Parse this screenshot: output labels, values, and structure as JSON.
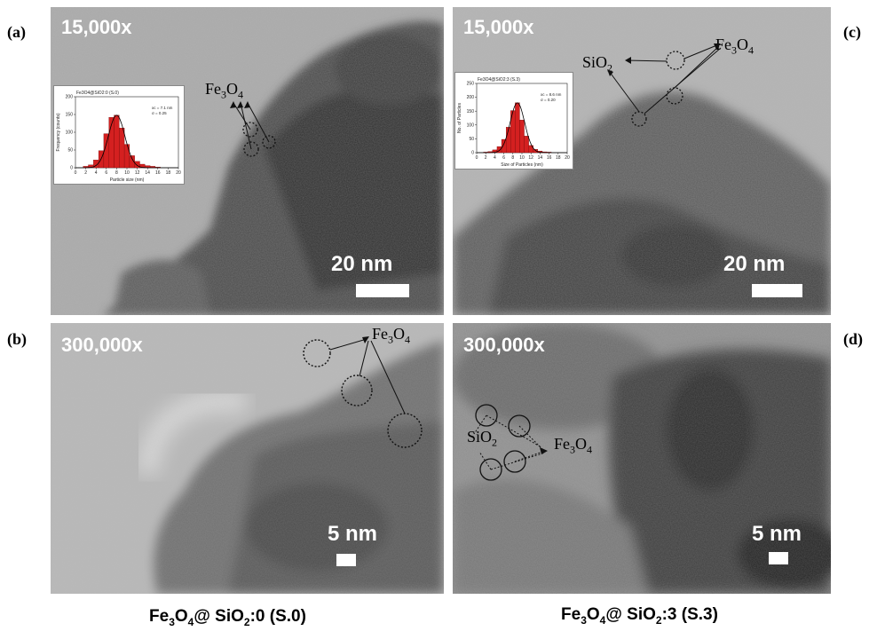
{
  "figure": {
    "panels": [
      {
        "id": "a",
        "label": "(a)",
        "magnification": "15,000x",
        "scale_bar": "20 nm",
        "annotation": {
          "formula": "Fe",
          "sub1": "3",
          "mid": "O",
          "sub2": "4"
        },
        "inset": {
          "title": "Fe3O4@SiO2:0 (S.0)",
          "xlabel": "Particle size (nm)",
          "ylabel": "Frequency (counts)",
          "stat_mean": "xc = 7.1 nm",
          "stat_sigma": "σ = 0.25",
          "chart_data": {
            "type": "bar",
            "x": [
              2,
              3,
              4,
              5,
              6,
              7,
              8,
              9,
              10,
              11,
              12,
              13,
              14,
              15,
              16
            ],
            "values": [
              4,
              8,
              22,
              48,
              96,
              142,
              148,
              112,
              66,
              34,
              18,
              10,
              6,
              4,
              2
            ],
            "xlim": [
              0,
              20
            ],
            "ylim": [
              0,
              200
            ],
            "xticks": [
              "0",
              "2",
              "4",
              "6",
              "8",
              "10",
              "12",
              "14",
              "16",
              "18",
              "20"
            ],
            "yticks": [
              "0",
              "50",
              "100",
              "150",
              "200"
            ]
          }
        }
      },
      {
        "id": "b",
        "label": "(b)",
        "magnification": "300,000x",
        "scale_bar": "5 nm",
        "annotation": {
          "formula": "Fe",
          "sub1": "3",
          "mid": "O",
          "sub2": "4"
        }
      },
      {
        "id": "c",
        "label": "(c)",
        "magnification": "15,000x",
        "scale_bar": "20 nm",
        "annotation": {
          "formula": "Fe",
          "sub1": "3",
          "mid": "O",
          "sub2": "4"
        },
        "annotation2": {
          "formula": "SiO",
          "sub1": "2"
        },
        "inset": {
          "title": "Fe3O4@SiO2:3 (S.3)",
          "xlabel": "Size of Particles (nm)",
          "ylabel": "No. of Particles",
          "stat_mean": "xc = 8.6 nm",
          "stat_sigma": "σ = 0.20",
          "chart_data": {
            "type": "bar",
            "x": [
              2,
              3,
              4,
              5,
              6,
              7,
              8,
              9,
              10,
              11,
              12,
              13,
              14,
              15,
              16
            ],
            "values": [
              2,
              4,
              10,
              22,
              48,
              92,
              152,
              180,
              118,
              60,
              26,
              12,
              6,
              3,
              2
            ],
            "xlim": [
              0,
              20
            ],
            "ylim": [
              0,
              250
            ],
            "xticks": [
              "0",
              "2",
              "4",
              "6",
              "8",
              "10",
              "12",
              "14",
              "16",
              "18",
              "20"
            ],
            "yticks": [
              "0",
              "50",
              "100",
              "150",
              "200",
              "250"
            ]
          }
        }
      },
      {
        "id": "d",
        "label": "(d)",
        "magnification": "300,000x",
        "scale_bar": "5 nm",
        "annotation": {
          "formula": "Fe",
          "sub1": "3",
          "mid": "O",
          "sub2": "4"
        },
        "annotation2": {
          "formula": "SiO",
          "sub1": "2"
        }
      }
    ],
    "captions": [
      {
        "fe": "Fe",
        "s1": "3",
        "o": "O",
        "s2": "4",
        "rest1": "@ SiO",
        "s3": "2",
        "rest2": ":0 (S.0)"
      },
      {
        "fe": "Fe",
        "s1": "3",
        "o": "O",
        "s2": "4",
        "rest1": "@ SiO",
        "s3": "2",
        "rest2": ":3 (S.3)"
      }
    ],
    "colors": {
      "bar_fill": "#d42020",
      "fit_line": "#000000",
      "overlay_text": "#ffffff"
    }
  }
}
